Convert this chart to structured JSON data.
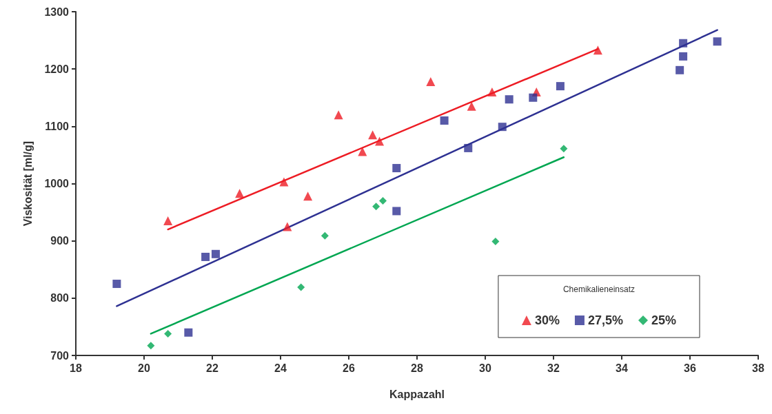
{
  "chart_data": {
    "type": "scatter",
    "xlabel": "Kappazahl",
    "ylabel": "Viskosität [ml/g]",
    "legend_title": "Chemikalieneinsatz",
    "legend": "bottom right",
    "grid": false,
    "xlim": [
      18,
      38
    ],
    "xticks": [
      18,
      20,
      22,
      24,
      26,
      28,
      30,
      32,
      34,
      36,
      38
    ],
    "ylim": [
      700,
      1300
    ],
    "yticks": [
      700,
      800,
      900,
      1000,
      1100,
      1200,
      1300
    ],
    "series": [
      {
        "name": "30%",
        "color": "#ed1c24",
        "marker": "triangle",
        "x": [
          20.7,
          22.8,
          24.1,
          24.2,
          24.8,
          25.7,
          26.4,
          26.7,
          26.9,
          28.4,
          29.6,
          30.2,
          31.5,
          33.3
        ],
        "values": [
          935,
          983,
          1003,
          925,
          978,
          1120,
          1056,
          1085,
          1074,
          1178,
          1135,
          1160,
          1160,
          1233
        ]
      },
      {
        "name": "27,5%",
        "color": "#2e3192",
        "marker": "square",
        "x": [
          19.2,
          21.3,
          21.8,
          22.1,
          27.4,
          27.4,
          28.8,
          29.5,
          30.5,
          30.7,
          31.4,
          32.2,
          35.7,
          35.8,
          35.8,
          36.8
        ],
        "values": [
          825,
          740,
          872,
          877,
          1027,
          952,
          1110,
          1062,
          1099,
          1147,
          1150,
          1170,
          1198,
          1222,
          1245,
          1248
        ]
      },
      {
        "name": "25%",
        "color": "#00a651",
        "marker": "diamond",
        "x": [
          20.2,
          20.7,
          24.6,
          25.3,
          26.8,
          27.0,
          30.3,
          32.3
        ],
        "values": [
          717,
          738,
          819,
          909,
          960,
          970,
          899,
          1061
        ]
      },
      {
        "type": "line",
        "color": "#ed1c24",
        "marker": "none",
        "line_style": "solid",
        "x": [
          20.7,
          33.3
        ],
        "values": [
          920,
          1235
        ]
      },
      {
        "type": "line",
        "color": "#2e3192",
        "marker": "none",
        "line_style": "solid",
        "x": [
          19.2,
          36.8
        ],
        "values": [
          786,
          1268
        ]
      },
      {
        "type": "line",
        "color": "#00a651",
        "marker": "none",
        "line_style": "solid",
        "x": [
          20.2,
          32.3
        ],
        "values": [
          738,
          1046
        ]
      }
    ]
  }
}
